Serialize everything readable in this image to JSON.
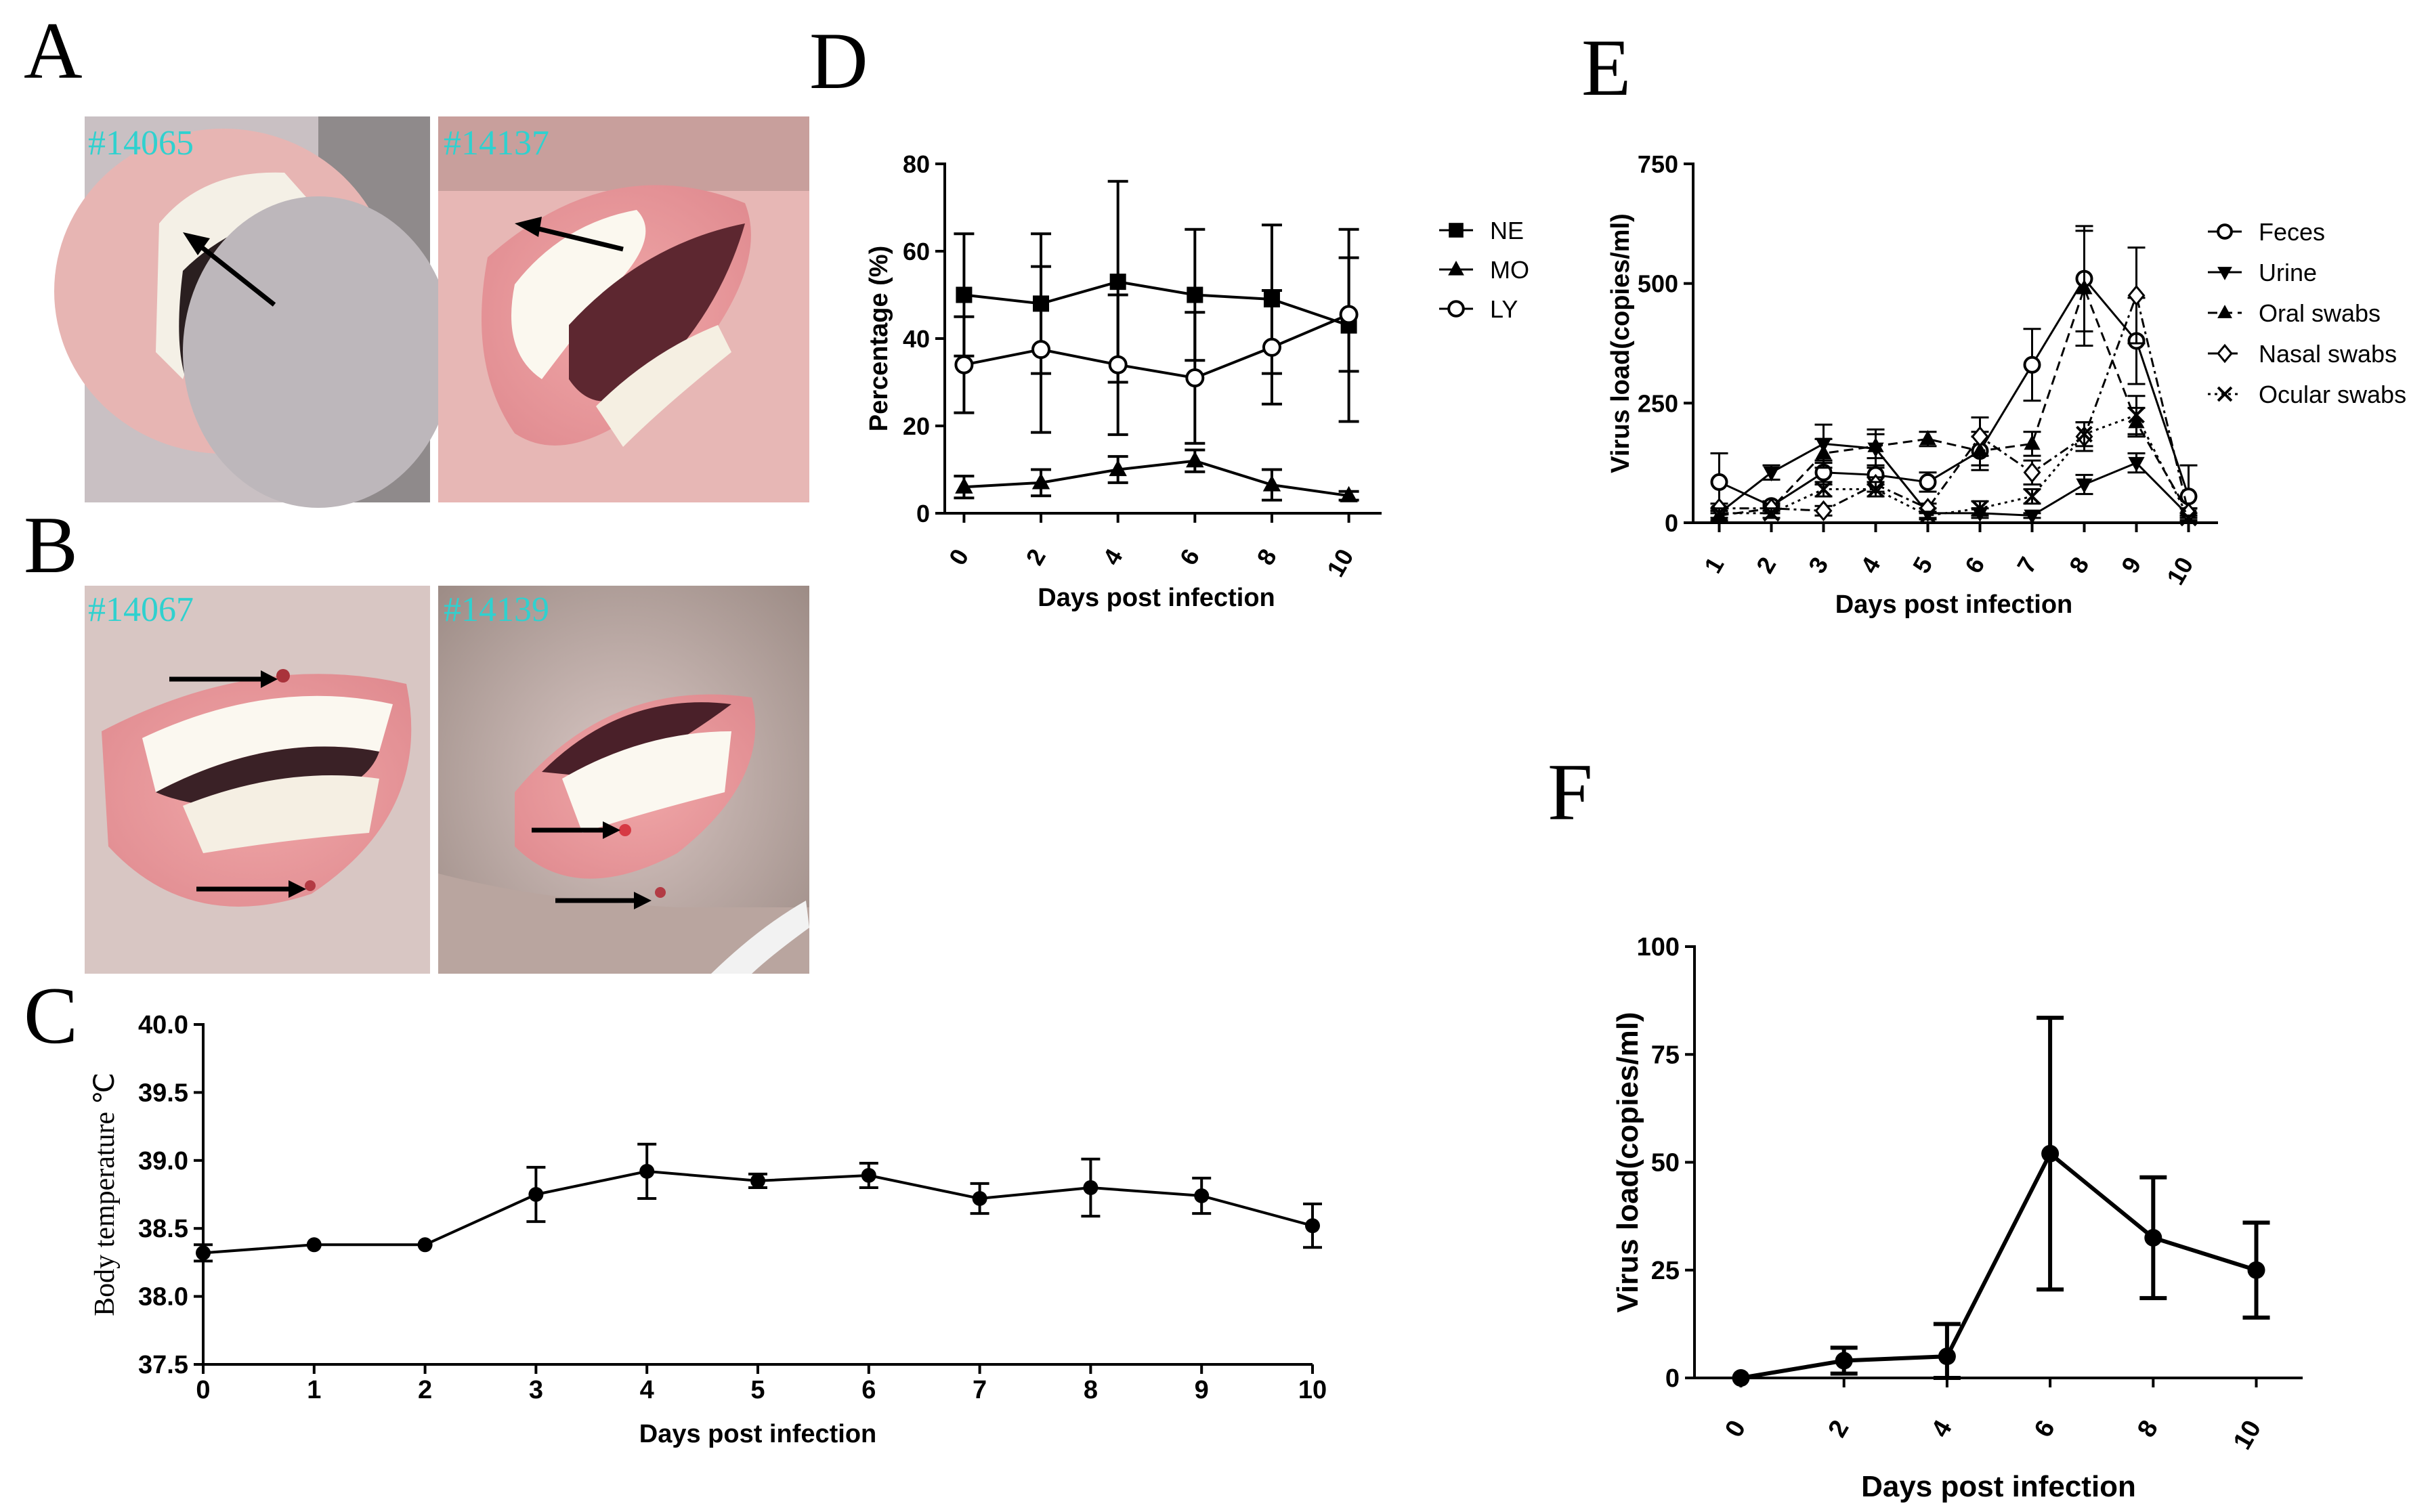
{
  "panels": {
    "A": "A",
    "B": "B",
    "C": "C",
    "D": "D",
    "E": "E",
    "F": "F"
  },
  "photos": [
    {
      "id": "#14065",
      "panel": "A"
    },
    {
      "id": "#14137",
      "panel": "A"
    },
    {
      "id": "#14067",
      "panel": "B"
    },
    {
      "id": "#14139",
      "panel": "B"
    }
  ],
  "chart_data": [
    {
      "panel": "C",
      "type": "line",
      "xlabel": "Days post infection",
      "ylabel": "Body temperature ℃",
      "ylim": [
        37.5,
        40.0
      ],
      "yticks": [
        "37.5",
        "38.0",
        "38.5",
        "39.0",
        "39.5",
        "40.0"
      ],
      "x": [
        0,
        1,
        2,
        3,
        4,
        5,
        6,
        7,
        8,
        9,
        10
      ],
      "series": [
        {
          "name": "Body temperature",
          "values": [
            38.32,
            38.38,
            38.38,
            38.75,
            38.92,
            38.85,
            38.89,
            38.72,
            38.8,
            38.74,
            38.52
          ],
          "err": [
            0.06,
            0,
            0,
            0.2,
            0.2,
            0.05,
            0.09,
            0.11,
            0.21,
            0.13,
            0.16
          ]
        }
      ]
    },
    {
      "panel": "D",
      "type": "line",
      "xlabel": "Days post infection",
      "ylabel": "Percentage (%)",
      "ylim": [
        0,
        80
      ],
      "yticks": [
        "0",
        "20",
        "40",
        "60",
        "80"
      ],
      "x": [
        0,
        2,
        4,
        6,
        8,
        10
      ],
      "series": [
        {
          "name": "NE",
          "marker": "square",
          "values": [
            50,
            48,
            53,
            50,
            49,
            43
          ],
          "err": [
            14,
            16,
            23,
            15,
            17,
            22
          ]
        },
        {
          "name": "MO",
          "marker": "triangle",
          "values": [
            6,
            7,
            10,
            12,
            6.5,
            4
          ],
          "err": [
            2.5,
            3,
            3,
            2.5,
            3.5,
            1
          ]
        },
        {
          "name": "LY",
          "marker": "circle",
          "values": [
            34,
            37.5,
            34,
            31,
            38,
            45.5
          ],
          "err": [
            11,
            19,
            16,
            15,
            13,
            13
          ]
        }
      ]
    },
    {
      "panel": "E",
      "type": "line",
      "xlabel": "Days post infection",
      "ylabel": "Virus load(copies/ml)",
      "ylim": [
        0,
        750
      ],
      "yticks": [
        "0",
        "250",
        "500",
        "750"
      ],
      "x": [
        1,
        2,
        3,
        4,
        5,
        6,
        7,
        8,
        9,
        10
      ],
      "series": [
        {
          "name": "Feces",
          "marker": "circle",
          "values": [
            85,
            35,
            105,
            100,
            85,
            150,
            330,
            510,
            380,
            55
          ],
          "err": [
            60,
            10,
            25,
            20,
            20,
            40,
            75,
            110,
            90,
            65
          ]
        },
        {
          "name": "Urine",
          "marker": "invtriangle",
          "values": [
            20,
            105,
            165,
            155,
            20,
            20,
            15,
            80,
            125,
            15
          ],
          "err": [
            10,
            15,
            40,
            40,
            10,
            10,
            5,
            20,
            20,
            5
          ]
        },
        {
          "name": "Oral swabs",
          "marker": "triangle",
          "values": [
            15,
            30,
            145,
            160,
            175,
            150,
            165,
            490,
            210,
            20
          ],
          "err": [
            10,
            10,
            30,
            25,
            15,
            30,
            25,
            120,
            30,
            10
          ]
        },
        {
          "name": "Nasal swabs",
          "marker": "diamond",
          "values": [
            30,
            30,
            25,
            80,
            30,
            180,
            105,
            180,
            475,
            20
          ],
          "err": [
            10,
            10,
            10,
            15,
            10,
            40,
            25,
            30,
            100,
            10
          ]
        },
        {
          "name": "Ocular swabs",
          "marker": "x",
          "values": [
            20,
            20,
            70,
            70,
            15,
            30,
            55,
            185,
            225,
            10
          ],
          "err": [
            10,
            10,
            15,
            15,
            8,
            15,
            15,
            25,
            40,
            5
          ]
        }
      ]
    },
    {
      "panel": "F",
      "type": "line",
      "xlabel": "Days post infection",
      "ylabel": "Virus load(copies/ml)",
      "ylim": [
        0,
        100
      ],
      "yticks": [
        "0",
        "25",
        "50",
        "75",
        "100"
      ],
      "x": [
        0,
        2,
        4,
        6,
        8,
        10
      ],
      "series": [
        {
          "name": "Virus load",
          "values": [
            0,
            4,
            5,
            52,
            32.5,
            25
          ],
          "err": [
            0,
            3,
            7.5,
            31.5,
            14,
            11
          ]
        }
      ]
    }
  ]
}
